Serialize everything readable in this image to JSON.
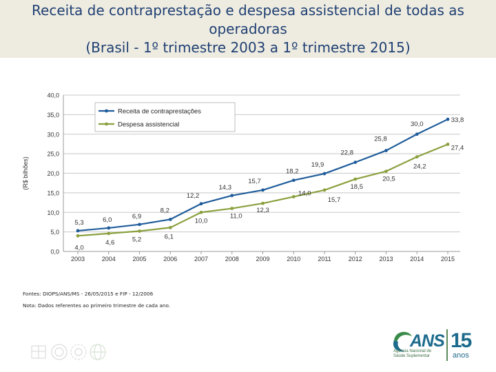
{
  "title": {
    "line1": "Receita de contraprestação e despesa assistencial de todas as",
    "line2": "operadoras",
    "line3": "(Brasil - 1º trimestre 2003 a 1º trimestre 2015)"
  },
  "chart_data": {
    "type": "line",
    "ylabel": "(R$ bilhões)",
    "ylim": [
      0,
      40
    ],
    "yticks": [
      "0,0",
      "5,0",
      "10,0",
      "15,0",
      "20,0",
      "25,0",
      "30,0",
      "35,0",
      "40,0"
    ],
    "grid": true,
    "legend": "top-left",
    "categories": [
      "2003",
      "2004",
      "2005",
      "2006",
      "2007",
      "2008",
      "2009",
      "2010",
      "2011",
      "2012",
      "2013",
      "2014",
      "2015"
    ],
    "series": [
      {
        "name": "Receita de contraprestações",
        "color": "#1f5c9a",
        "values": [
          5.3,
          6.0,
          6.9,
          8.2,
          12.2,
          14.3,
          15.7,
          18.2,
          19.9,
          22.8,
          25.8,
          30.0,
          33.8
        ],
        "labels": [
          "5,3",
          "6,0",
          "6,9",
          "8,2",
          "12,2",
          "14,3",
          "15,7",
          "18,2",
          "19,9",
          "22,8",
          "25,8",
          "30,0",
          "33,8"
        ]
      },
      {
        "name": "Despesa assistencial",
        "color": "#8aa03e",
        "values": [
          4.0,
          4.6,
          5.2,
          6.1,
          10.0,
          11.0,
          12.3,
          14.0,
          15.7,
          18.5,
          20.5,
          24.2,
          27.4
        ],
        "labels": [
          "4,0",
          "4,6",
          "5,2",
          "6,1",
          "10,0",
          "11,0",
          "12,3",
          "14,0",
          "15,7",
          "18,5",
          "20,5",
          "24,2",
          "27,4"
        ]
      }
    ]
  },
  "notes": {
    "source": "Fontes: DIOPS/ANS/MS - 26/05/2015 e FIP - 12/2006",
    "note": "Nota: Dados referentes ao primeiro trimestre de cada ano."
  },
  "logo": {
    "brand": "ANS",
    "subtitle_line1": "Agência Nacional de",
    "subtitle_line2": "Saúde Suplementar",
    "anniversary": "15",
    "anniversary_unit": "anos"
  },
  "colors": {
    "title": "#1f3f72",
    "title_band": "#eeece1",
    "grid": "#c8c8c8"
  }
}
